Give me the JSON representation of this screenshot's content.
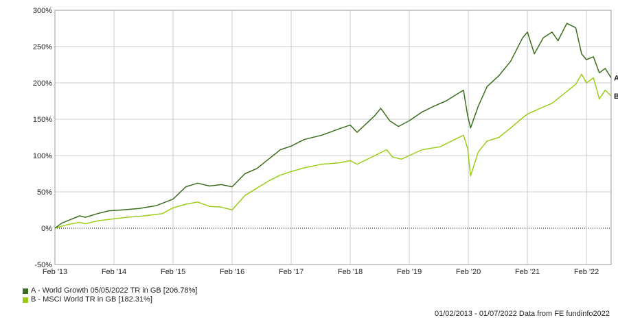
{
  "chart_data": {
    "type": "line",
    "y_unit": "%",
    "ylim": [
      -50,
      300
    ],
    "y_ticks": [
      "300%",
      "250%",
      "200%",
      "150%",
      "100%",
      "50%",
      "0%",
      "-50%"
    ],
    "y_tick_values": [
      300,
      250,
      200,
      150,
      100,
      50,
      0,
      -50
    ],
    "x_ticks": [
      "Feb '13",
      "Feb '14",
      "Feb '15",
      "Feb '16",
      "Feb '17",
      "Feb '18",
      "Feb '19",
      "Feb '20",
      "Feb '21",
      "Feb '22"
    ],
    "x_tick_values": [
      2013.083,
      2014.083,
      2015.083,
      2016.083,
      2017.083,
      2018.083,
      2019.083,
      2020.083,
      2021.083,
      2022.083
    ],
    "xlim": [
      2013.083,
      2022.5
    ],
    "grid": true,
    "legend_position": "bottom-left",
    "series": [
      {
        "name": "A - World Growth 05/05/2022 TR in GB [206.78%]",
        "end_label": "A",
        "color": "#3a6e1c",
        "points": [
          [
            2013.083,
            0
          ],
          [
            2013.2,
            7
          ],
          [
            2013.35,
            12
          ],
          [
            2013.5,
            17
          ],
          [
            2013.6,
            15
          ],
          [
            2013.8,
            20
          ],
          [
            2014.0,
            24
          ],
          [
            2014.2,
            25
          ],
          [
            2014.5,
            27
          ],
          [
            2014.8,
            31
          ],
          [
            2015.083,
            40
          ],
          [
            2015.3,
            57
          ],
          [
            2015.5,
            62
          ],
          [
            2015.7,
            58
          ],
          [
            2015.9,
            60
          ],
          [
            2016.083,
            57
          ],
          [
            2016.3,
            75
          ],
          [
            2016.5,
            82
          ],
          [
            2016.7,
            95
          ],
          [
            2016.9,
            108
          ],
          [
            2017.083,
            113
          ],
          [
            2017.3,
            122
          ],
          [
            2017.6,
            128
          ],
          [
            2017.9,
            137
          ],
          [
            2018.083,
            142
          ],
          [
            2018.2,
            132
          ],
          [
            2018.5,
            155
          ],
          [
            2018.6,
            165
          ],
          [
            2018.75,
            148
          ],
          [
            2018.9,
            140
          ],
          [
            2019.083,
            148
          ],
          [
            2019.3,
            160
          ],
          [
            2019.5,
            168
          ],
          [
            2019.7,
            175
          ],
          [
            2019.9,
            185
          ],
          [
            2020.0,
            190
          ],
          [
            2020.07,
            155
          ],
          [
            2020.12,
            138
          ],
          [
            2020.25,
            168
          ],
          [
            2020.4,
            195
          ],
          [
            2020.6,
            210
          ],
          [
            2020.8,
            230
          ],
          [
            2021.0,
            262
          ],
          [
            2021.083,
            270
          ],
          [
            2021.2,
            240
          ],
          [
            2021.35,
            262
          ],
          [
            2021.5,
            270
          ],
          [
            2021.6,
            258
          ],
          [
            2021.75,
            282
          ],
          [
            2021.9,
            276
          ],
          [
            2022.0,
            240
          ],
          [
            2022.083,
            232
          ],
          [
            2022.2,
            236
          ],
          [
            2022.3,
            214
          ],
          [
            2022.4,
            220
          ],
          [
            2022.5,
            207
          ]
        ]
      },
      {
        "name": "B - MSCI World TR in GB [182.31%]",
        "end_label": "B",
        "color": "#9acd18",
        "points": [
          [
            2013.083,
            0
          ],
          [
            2013.3,
            5
          ],
          [
            2013.5,
            8
          ],
          [
            2013.6,
            6
          ],
          [
            2013.8,
            10
          ],
          [
            2014.0,
            12
          ],
          [
            2014.3,
            15
          ],
          [
            2014.6,
            17
          ],
          [
            2014.9,
            20
          ],
          [
            2015.083,
            28
          ],
          [
            2015.3,
            33
          ],
          [
            2015.5,
            36
          ],
          [
            2015.7,
            30
          ],
          [
            2015.9,
            29
          ],
          [
            2016.083,
            25
          ],
          [
            2016.3,
            45
          ],
          [
            2016.5,
            55
          ],
          [
            2016.7,
            65
          ],
          [
            2016.9,
            73
          ],
          [
            2017.083,
            78
          ],
          [
            2017.3,
            83
          ],
          [
            2017.6,
            88
          ],
          [
            2017.9,
            90
          ],
          [
            2018.083,
            93
          ],
          [
            2018.2,
            88
          ],
          [
            2018.5,
            100
          ],
          [
            2018.7,
            108
          ],
          [
            2018.8,
            98
          ],
          [
            2018.95,
            95
          ],
          [
            2019.083,
            100
          ],
          [
            2019.3,
            108
          ],
          [
            2019.6,
            112
          ],
          [
            2019.8,
            120
          ],
          [
            2020.0,
            128
          ],
          [
            2020.07,
            110
          ],
          [
            2020.12,
            72
          ],
          [
            2020.25,
            105
          ],
          [
            2020.4,
            120
          ],
          [
            2020.6,
            125
          ],
          [
            2020.8,
            138
          ],
          [
            2021.0,
            152
          ],
          [
            2021.083,
            157
          ],
          [
            2021.3,
            165
          ],
          [
            2021.5,
            172
          ],
          [
            2021.7,
            185
          ],
          [
            2021.9,
            198
          ],
          [
            2022.0,
            212
          ],
          [
            2022.083,
            200
          ],
          [
            2022.2,
            207
          ],
          [
            2022.3,
            178
          ],
          [
            2022.4,
            190
          ],
          [
            2022.5,
            182
          ]
        ]
      }
    ]
  },
  "footer": {
    "source_text": "01/02/2013 - 01/07/2022 Data from FE fundinfo2022"
  }
}
